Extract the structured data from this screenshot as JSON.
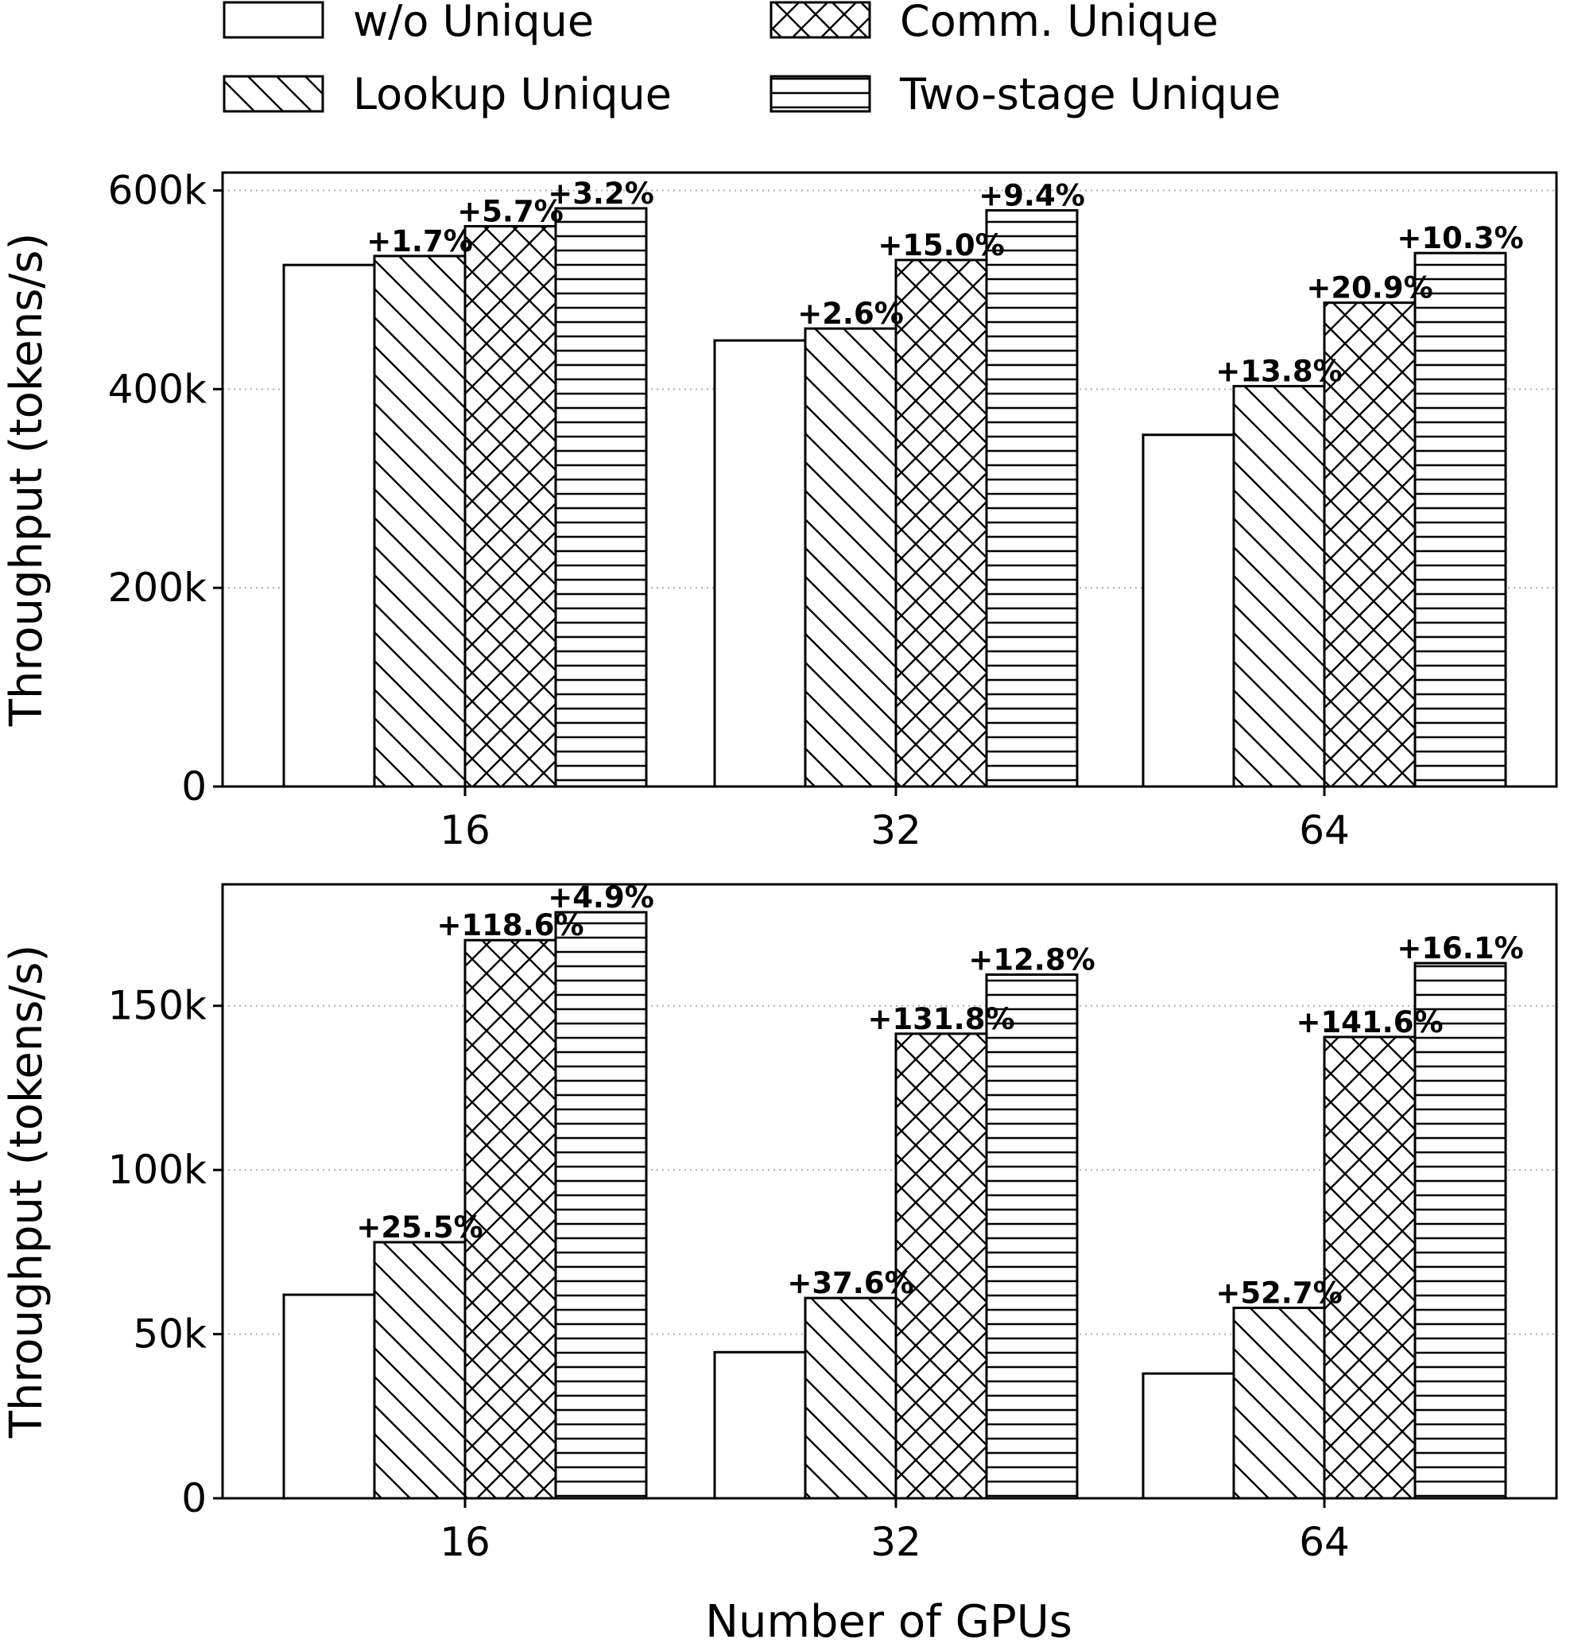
{
  "legend": [
    {
      "label": "w/o Unique",
      "pattern": "none"
    },
    {
      "label": "Comm. Unique",
      "pattern": "crosshatch"
    },
    {
      "label": "Lookup Unique",
      "pattern": "diagonal"
    },
    {
      "label": "Two-stage Unique",
      "pattern": "horizontal"
    }
  ],
  "xlabel": "Number of GPUs",
  "colors": {
    "edge": "#000000",
    "fill": "#ffffff",
    "grid": "#b0b0b0"
  },
  "chart_data": [
    {
      "type": "bar",
      "categories": [
        "16",
        "32",
        "64"
      ],
      "ylabel": "Throughput (tokens/s)",
      "ylim": [
        0,
        618000
      ],
      "yticks": [
        0,
        200000,
        400000,
        600000
      ],
      "ytick_labels": [
        "0",
        "200k",
        "400k",
        "600k"
      ],
      "grid": "y-dotted",
      "series": [
        {
          "name": "w/o Unique",
          "values": [
            525000,
            449000,
            354000
          ],
          "labels": [
            "",
            "",
            ""
          ]
        },
        {
          "name": "Lookup Unique",
          "values": [
            534000,
            461000,
            403000
          ],
          "labels": [
            "+1.7%",
            "+2.6%",
            "+13.8%"
          ]
        },
        {
          "name": "Comm. Unique",
          "values": [
            564000,
            530000,
            487000
          ],
          "labels": [
            "+5.7%",
            "+15.0%",
            "+20.9%"
          ]
        },
        {
          "name": "Two-stage Unique",
          "values": [
            582000,
            580000,
            537000
          ],
          "labels": [
            "+3.2%",
            "+9.4%",
            "+10.3%"
          ]
        }
      ]
    },
    {
      "type": "bar",
      "categories": [
        "16",
        "32",
        "64"
      ],
      "ylabel": "Throughput (tokens/s)",
      "ylim": [
        0,
        187000
      ],
      "yticks": [
        0,
        50000,
        100000,
        150000
      ],
      "ytick_labels": [
        "0",
        "50k",
        "100k",
        "150k"
      ],
      "grid": "y-dotted",
      "series": [
        {
          "name": "w/o Unique",
          "values": [
            62000,
            44500,
            38000
          ],
          "labels": [
            "",
            "",
            ""
          ]
        },
        {
          "name": "Lookup Unique",
          "values": [
            78000,
            61000,
            58000
          ],
          "labels": [
            "+25.5%",
            "+37.6%",
            "+52.7%"
          ]
        },
        {
          "name": "Comm. Unique",
          "values": [
            170000,
            141500,
            140500
          ],
          "labels": [
            "+118.6%",
            "+131.8%",
            "+141.6%"
          ]
        },
        {
          "name": "Two-stage Unique",
          "values": [
            178500,
            159500,
            163000
          ],
          "labels": [
            "+4.9%",
            "+12.8%",
            "+16.1%"
          ]
        }
      ]
    }
  ]
}
